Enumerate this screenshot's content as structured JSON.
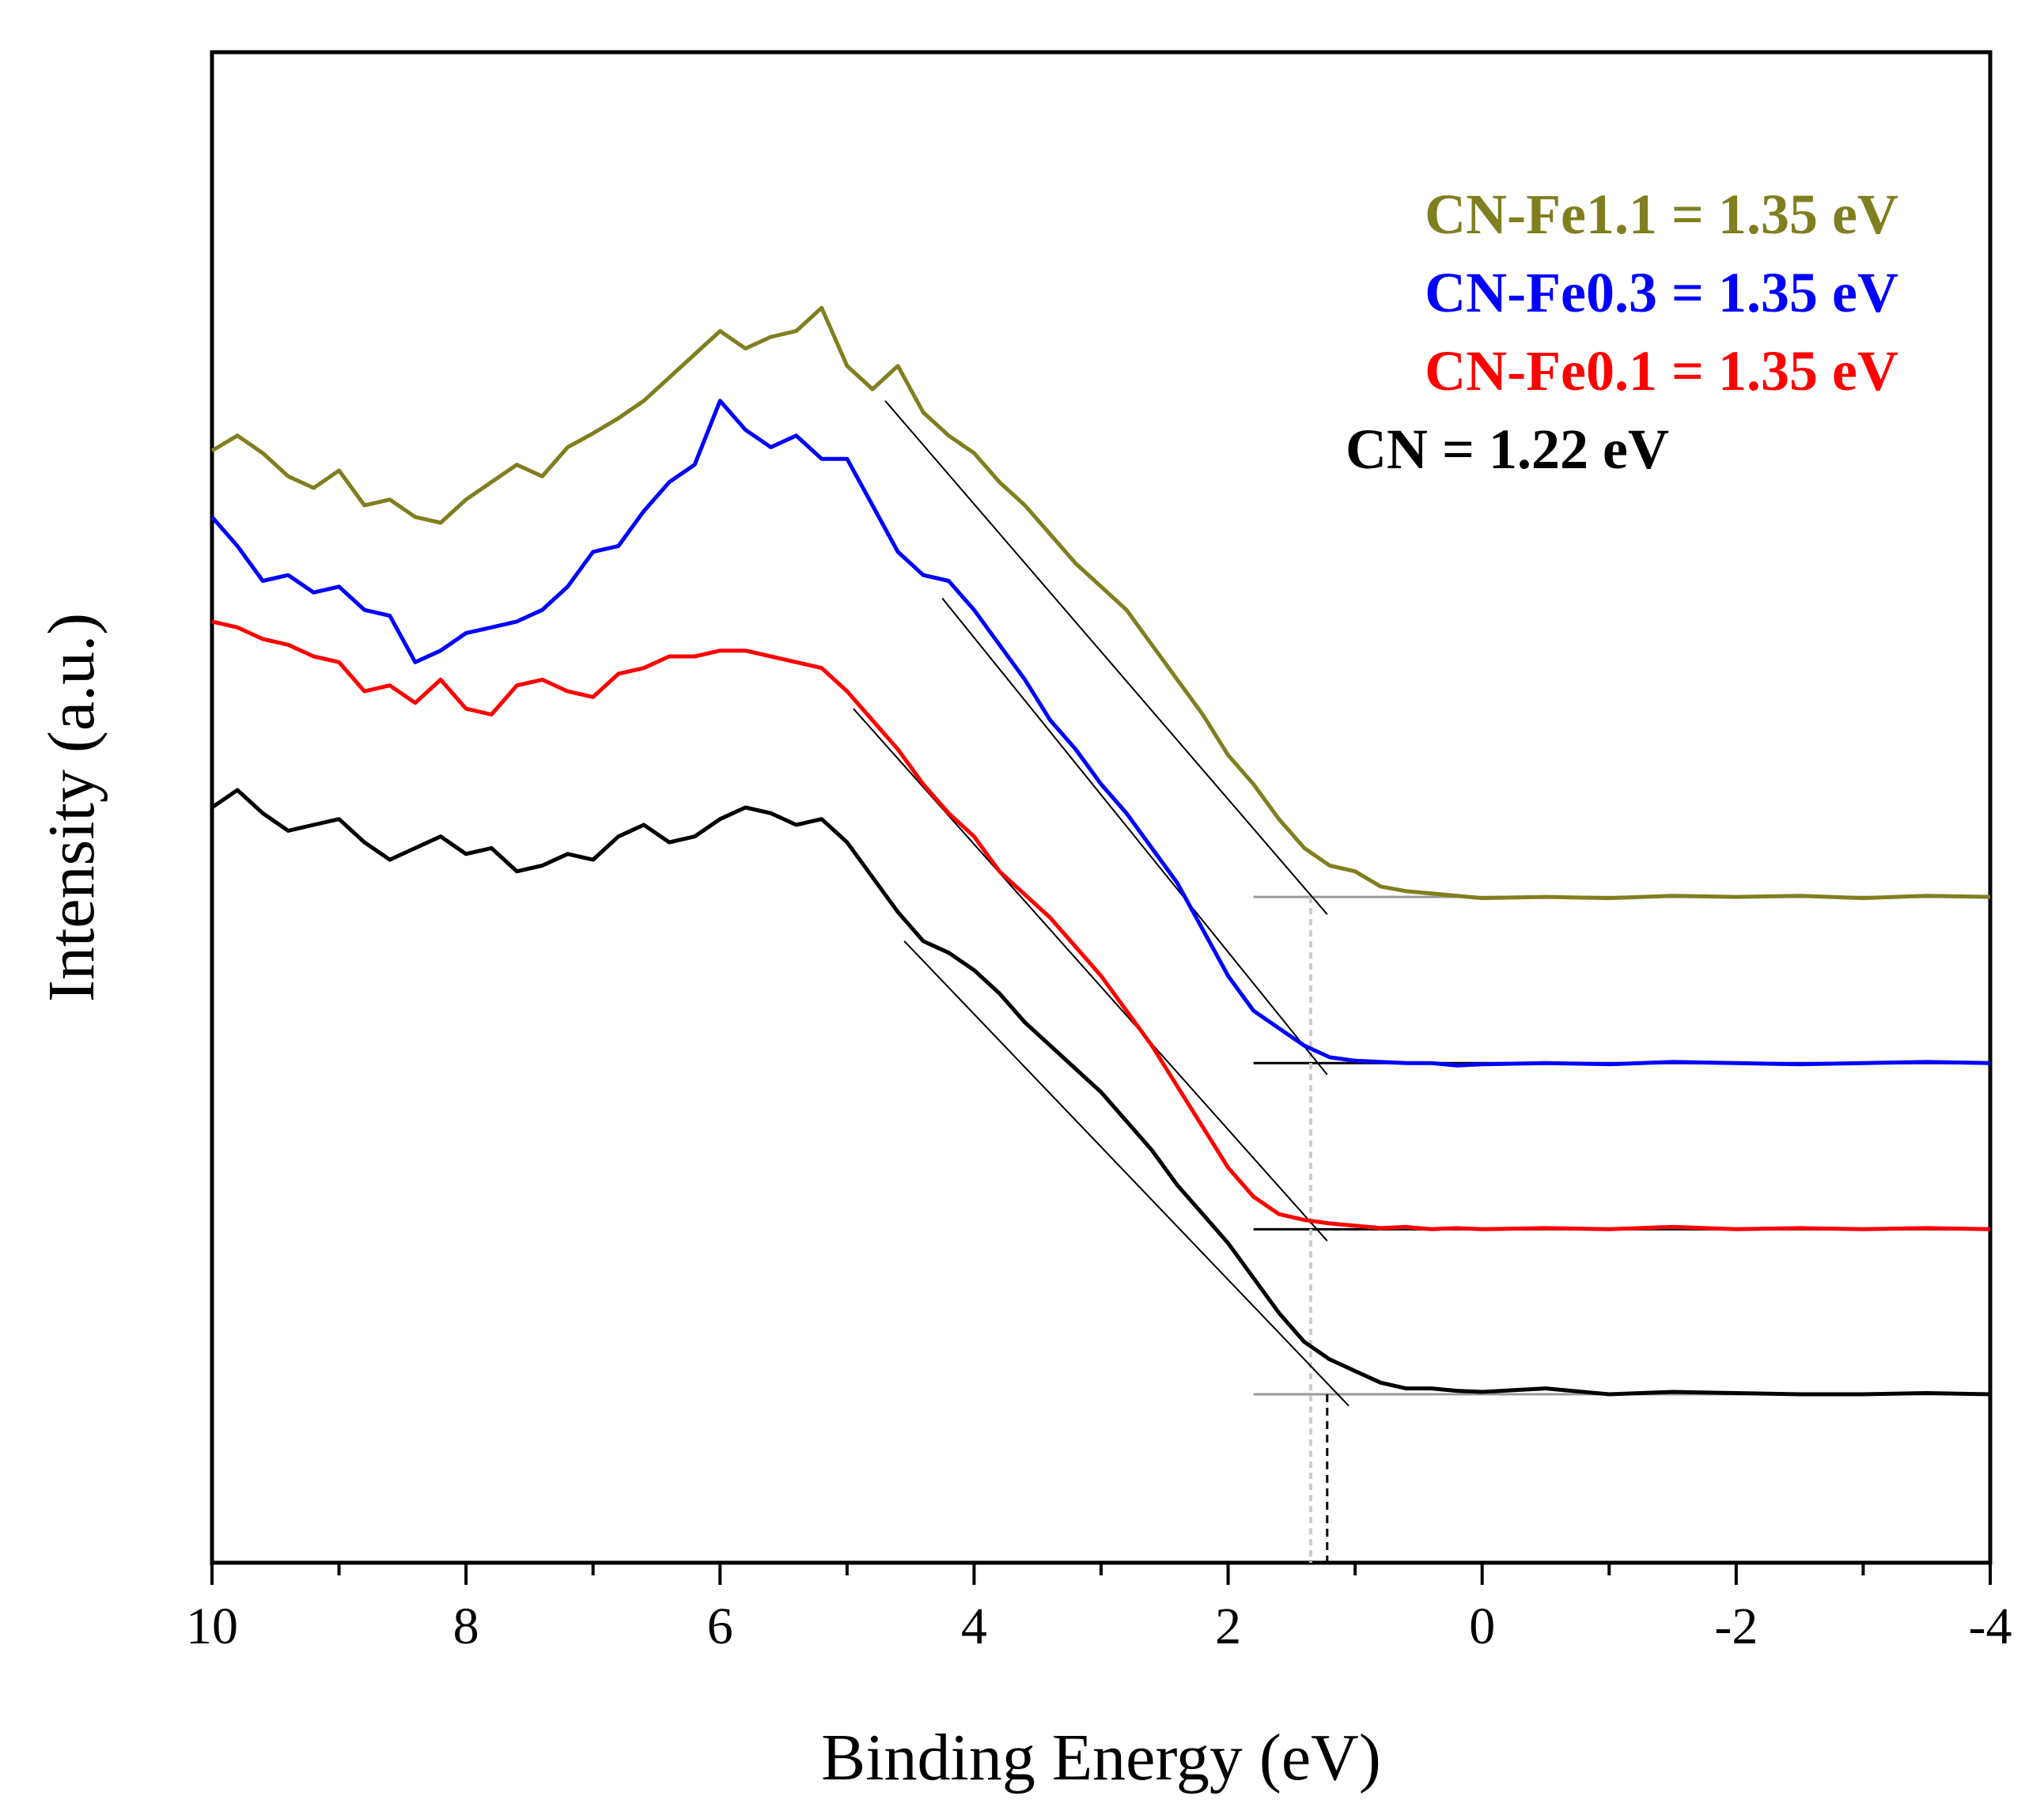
{
  "chart_data": {
    "type": "line",
    "title": "",
    "xlabel": "Binding Energy (eV)",
    "ylabel": "Intensity (a.u.)",
    "xlim": [
      10,
      -4
    ],
    "ylim": [
      0,
      13
    ],
    "x_ticks": [
      "10",
      "8",
      "6",
      "4",
      "2",
      "0",
      "-2",
      "-4"
    ],
    "x_tick_values": [
      10,
      8,
      6,
      4,
      2,
      0,
      -2,
      -4
    ],
    "y_ticks": [],
    "grid": false,
    "legend_position": "top-right",
    "legend": [
      {
        "label": "CN-Fe1.1 = 1.35 eV",
        "color": "#7f7f1f"
      },
      {
        "label": "CN-Fe0.3 = 1.35 eV",
        "color": "#0000ff"
      },
      {
        "label": "CN-Fe0.1 = 1.35 eV",
        "color": "#ff0000"
      },
      {
        "label": "CN = 1.22 eV",
        "color": "#000000"
      }
    ],
    "series": [
      {
        "name": "CN-Fe1.1",
        "color": "#7f7f1f",
        "baseline": 5.73,
        "onset_eV": 1.35,
        "fit_line": {
          "x": [
            4.7,
            1.22
          ],
          "y": [
            10.0,
            5.58
          ]
        },
        "x": [
          10.0,
          9.8,
          9.6,
          9.4,
          9.2,
          9.0,
          8.8,
          8.6,
          8.4,
          8.2,
          8.0,
          7.8,
          7.6,
          7.4,
          7.2,
          7.0,
          6.8,
          6.6,
          6.4,
          6.2,
          6.0,
          5.8,
          5.6,
          5.4,
          5.2,
          5.0,
          4.8,
          4.6,
          4.4,
          4.2,
          4.0,
          3.8,
          3.6,
          3.4,
          3.2,
          3.0,
          2.8,
          2.6,
          2.4,
          2.2,
          2.0,
          1.8,
          1.6,
          1.4,
          1.2,
          1.0,
          0.8,
          0.6,
          0.4,
          0.2,
          0.0,
          -0.5,
          -1.0,
          -1.5,
          -2.0,
          -2.5,
          -3.0,
          -3.5,
          -4.0
        ],
        "y": [
          9.57,
          9.7,
          9.55,
          9.35,
          9.25,
          9.4,
          9.1,
          9.15,
          9.0,
          8.95,
          9.15,
          9.3,
          9.45,
          9.35,
          9.6,
          9.72,
          9.85,
          10.0,
          10.2,
          10.4,
          10.6,
          10.45,
          10.55,
          10.6,
          10.8,
          10.3,
          10.1,
          10.3,
          9.9,
          9.7,
          9.55,
          9.3,
          9.1,
          8.85,
          8.6,
          8.4,
          8.2,
          7.9,
          7.6,
          7.3,
          6.95,
          6.7,
          6.4,
          6.15,
          6.0,
          5.95,
          5.82,
          5.78,
          5.76,
          5.74,
          5.72,
          5.73,
          5.72,
          5.74,
          5.73,
          5.74,
          5.72,
          5.74,
          5.73
        ]
      },
      {
        "name": "CN-Fe0.3",
        "color": "#0000ff",
        "baseline": 4.3,
        "onset_eV": 1.35,
        "fit_line": {
          "x": [
            4.25,
            1.22
          ],
          "y": [
            8.3,
            4.2
          ]
        },
        "x": [
          10.0,
          9.8,
          9.6,
          9.4,
          9.2,
          9.0,
          8.8,
          8.6,
          8.4,
          8.2,
          8.0,
          7.8,
          7.6,
          7.4,
          7.2,
          7.0,
          6.8,
          6.6,
          6.4,
          6.2,
          6.0,
          5.8,
          5.6,
          5.4,
          5.2,
          5.0,
          4.8,
          4.6,
          4.4,
          4.2,
          4.0,
          3.8,
          3.6,
          3.4,
          3.2,
          3.0,
          2.8,
          2.6,
          2.4,
          2.2,
          2.0,
          1.8,
          1.6,
          1.4,
          1.2,
          1.0,
          0.8,
          0.6,
          0.4,
          0.2,
          0.0,
          -0.5,
          -1.0,
          -1.5,
          -2.0,
          -2.5,
          -3.0,
          -3.5,
          -4.0
        ],
        "y": [
          9.0,
          8.75,
          8.45,
          8.5,
          8.35,
          8.4,
          8.2,
          8.15,
          7.75,
          7.85,
          8.0,
          8.05,
          8.1,
          8.2,
          8.4,
          8.7,
          8.75,
          9.05,
          9.3,
          9.45,
          10.0,
          9.75,
          9.6,
          9.7,
          9.5,
          9.5,
          9.1,
          8.7,
          8.5,
          8.45,
          8.2,
          7.9,
          7.6,
          7.25,
          7.0,
          6.7,
          6.45,
          6.15,
          5.85,
          5.45,
          5.05,
          4.75,
          4.6,
          4.45,
          4.35,
          4.32,
          4.31,
          4.3,
          4.3,
          4.28,
          4.29,
          4.3,
          4.29,
          4.31,
          4.3,
          4.29,
          4.3,
          4.31,
          4.3
        ]
      },
      {
        "name": "CN-Fe0.1",
        "color": "#ff0000",
        "baseline": 2.87,
        "onset_eV": 1.35,
        "fit_line": {
          "x": [
            4.95,
            1.22
          ],
          "y": [
            7.35,
            2.77
          ]
        },
        "x": [
          10.0,
          9.8,
          9.6,
          9.4,
          9.2,
          9.0,
          8.8,
          8.6,
          8.4,
          8.2,
          8.0,
          7.8,
          7.6,
          7.4,
          7.2,
          7.0,
          6.8,
          6.6,
          6.4,
          6.2,
          6.0,
          5.8,
          5.6,
          5.4,
          5.2,
          5.0,
          4.8,
          4.6,
          4.4,
          4.2,
          4.0,
          3.8,
          3.6,
          3.4,
          3.2,
          3.0,
          2.8,
          2.6,
          2.4,
          2.2,
          2.0,
          1.8,
          1.6,
          1.4,
          1.2,
          1.0,
          0.8,
          0.6,
          0.4,
          0.2,
          0.0,
          -0.5,
          -1.0,
          -1.5,
          -2.0,
          -2.5,
          -3.0,
          -3.5,
          -4.0
        ],
        "y": [
          8.1,
          8.05,
          7.95,
          7.9,
          7.8,
          7.75,
          7.5,
          7.55,
          7.4,
          7.6,
          7.35,
          7.3,
          7.55,
          7.6,
          7.5,
          7.45,
          7.65,
          7.7,
          7.8,
          7.8,
          7.85,
          7.85,
          7.8,
          7.75,
          7.7,
          7.5,
          7.25,
          7.0,
          6.7,
          6.45,
          6.25,
          5.95,
          5.75,
          5.55,
          5.3,
          5.05,
          4.75,
          4.45,
          4.1,
          3.75,
          3.4,
          3.15,
          3.0,
          2.95,
          2.92,
          2.9,
          2.88,
          2.89,
          2.87,
          2.88,
          2.87,
          2.88,
          2.87,
          2.89,
          2.87,
          2.88,
          2.87,
          2.88,
          2.87
        ]
      },
      {
        "name": "CN",
        "color": "#000000",
        "baseline": 1.45,
        "onset_eV": 1.22,
        "fit_line": {
          "x": [
            4.55,
            1.05
          ],
          "y": [
            5.35,
            1.35
          ]
        },
        "x": [
          10.0,
          9.8,
          9.6,
          9.4,
          9.2,
          9.0,
          8.8,
          8.6,
          8.4,
          8.2,
          8.0,
          7.8,
          7.6,
          7.4,
          7.2,
          7.0,
          6.8,
          6.6,
          6.4,
          6.2,
          6.0,
          5.8,
          5.6,
          5.4,
          5.2,
          5.0,
          4.8,
          4.6,
          4.4,
          4.2,
          4.0,
          3.8,
          3.6,
          3.4,
          3.2,
          3.0,
          2.8,
          2.6,
          2.4,
          2.2,
          2.0,
          1.8,
          1.6,
          1.4,
          1.2,
          1.0,
          0.8,
          0.6,
          0.4,
          0.2,
          0.0,
          -0.5,
          -1.0,
          -1.5,
          -2.0,
          -2.5,
          -3.0,
          -3.5,
          -4.0
        ],
        "y": [
          6.5,
          6.65,
          6.45,
          6.3,
          6.35,
          6.4,
          6.2,
          6.05,
          6.15,
          6.25,
          6.1,
          6.15,
          5.95,
          6.0,
          6.1,
          6.05,
          6.25,
          6.35,
          6.2,
          6.25,
          6.4,
          6.5,
          6.45,
          6.35,
          6.4,
          6.2,
          5.9,
          5.6,
          5.35,
          5.25,
          5.1,
          4.9,
          4.65,
          4.45,
          4.25,
          4.05,
          3.8,
          3.55,
          3.25,
          3.0,
          2.75,
          2.45,
          2.15,
          1.9,
          1.75,
          1.65,
          1.55,
          1.5,
          1.5,
          1.48,
          1.47,
          1.5,
          1.45,
          1.47,
          1.46,
          1.45,
          1.45,
          1.46,
          1.45
        ]
      }
    ]
  }
}
